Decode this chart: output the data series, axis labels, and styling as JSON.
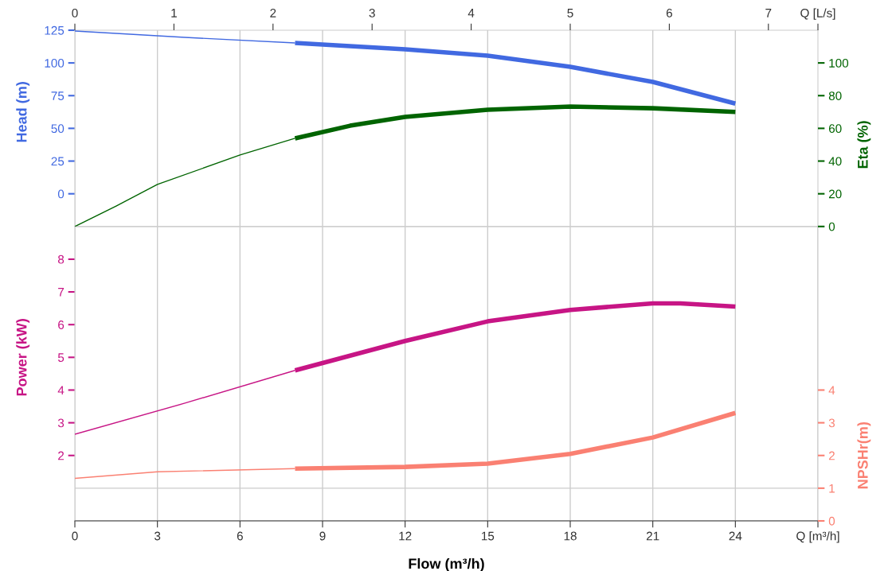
{
  "chart_data": [
    {
      "type": "line",
      "ylabel": "Head (m)",
      "y2label": "Eta (%)",
      "xlim": [
        0,
        27
      ],
      "xticks": [
        0,
        3,
        6,
        9,
        12,
        15,
        18,
        21,
        24
      ],
      "tick_labels": "y",
      "x2lim": [
        0,
        7.5
      ],
      "x2ticks": [
        0,
        1,
        2,
        3,
        4,
        5,
        6,
        7,
        {
          "value": 7.5,
          "label": "Q [L/s]"
        }
      ],
      "ylim": [
        -25,
        125
      ],
      "yticks": [
        0,
        25,
        50,
        75,
        100,
        125
      ],
      "y2lim": [
        0,
        120
      ],
      "y2ticks": [
        0,
        20,
        40,
        60,
        80,
        100
      ],
      "grid": true,
      "marker": "none",
      "line_style": "solid",
      "series": [
        {
          "color": "#4169e1",
          "x": [
            0,
            4,
            8
          ],
          "values": [
            124.4,
            119.5,
            115.3
          ]
        },
        {
          "color": "#4169e1",
          "x": [
            8,
            12,
            15,
            18,
            21,
            24
          ],
          "values": [
            115.3,
            110.4,
            105.5,
            97,
            85.5,
            68.9
          ]
        },
        {
          "axis": "y2",
          "color": "#006400",
          "x": [
            0,
            1.5,
            3,
            6,
            8
          ],
          "values": [
            0,
            12.5,
            25.7,
            43.7,
            53.9
          ]
        },
        {
          "axis": "y2",
          "color": "#006400",
          "x": [
            8,
            10,
            12,
            15,
            18,
            21,
            24
          ],
          "values": [
            53.9,
            61.6,
            67,
            71.4,
            73.3,
            72.3,
            70
          ]
        }
      ]
    },
    {
      "type": "line",
      "xlabel": "Flow (m³/h)",
      "ylabel": "Power (kW)",
      "y2label": "NPSHr(m)",
      "xlim": [
        0,
        27
      ],
      "xticks": [
        0,
        3,
        6,
        9,
        12,
        15,
        18,
        21,
        24,
        {
          "value": 27,
          "label": "Q [m³/h]"
        }
      ],
      "ylim": [
        0,
        9
      ],
      "yticks": [
        2,
        3,
        4,
        5,
        6,
        7,
        8
      ],
      "y2lim": [
        0,
        9
      ],
      "y2ticks": [
        0,
        1,
        2,
        3,
        4
      ],
      "grid": true,
      "marker": "none",
      "line_style": "solid",
      "series": [
        {
          "color": "#c71585",
          "x": [
            0,
            4,
            8
          ],
          "values": [
            2.65,
            3.6,
            4.6
          ]
        },
        {
          "color": "#c71585",
          "x": [
            8,
            12,
            15,
            18,
            21,
            22,
            24
          ],
          "values": [
            4.6,
            5.5,
            6.1,
            6.45,
            6.65,
            6.65,
            6.55
          ]
        },
        {
          "axis": "y2",
          "color": "#fa8072",
          "x": [
            0,
            3,
            8
          ],
          "values": [
            1.3,
            1.5,
            1.6
          ]
        },
        {
          "axis": "y2",
          "color": "#fa8072",
          "x": [
            8,
            12,
            15,
            18,
            21,
            24
          ],
          "values": [
            1.6,
            1.65,
            1.75,
            2.05,
            2.55,
            3.3
          ]
        }
      ]
    }
  ]
}
